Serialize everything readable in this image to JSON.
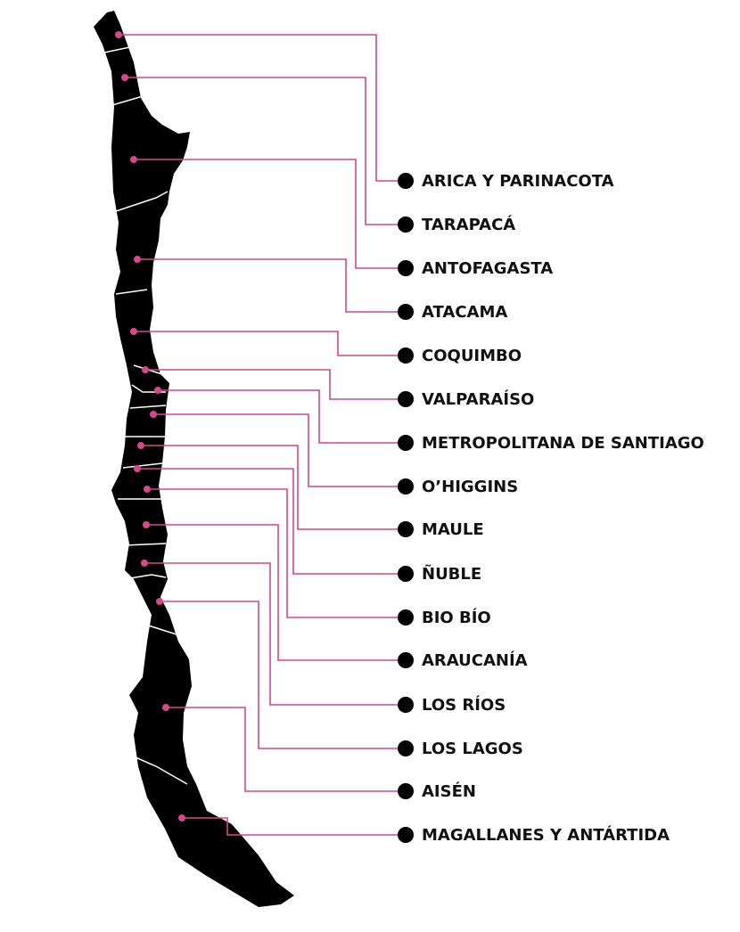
{
  "regions": [
    {
      "name": "ARICA Y PARINACOTA"
    },
    {
      "name": "TARAPACÁ"
    },
    {
      "name": "ANTOFAGASTA"
    },
    {
      "name": "ATACAMA"
    },
    {
      "name": "COQUIMBO"
    },
    {
      "name": "VALPARAÍSO"
    },
    {
      "name": "METROPOLITANA DE SANTIAGO"
    },
    {
      "name": "O’HIGGINS"
    },
    {
      "name": "MAULE"
    },
    {
      "name": "ÑUBLE"
    },
    {
      "name": "BIO BÍO"
    },
    {
      "name": "ARAUCANÍA"
    },
    {
      "name": "LOS RÍOS"
    },
    {
      "name": "LOS LAGOS"
    },
    {
      "name": "AISÉN"
    },
    {
      "name": "MAGALLANES Y ANTÁRTIDA"
    }
  ]
}
